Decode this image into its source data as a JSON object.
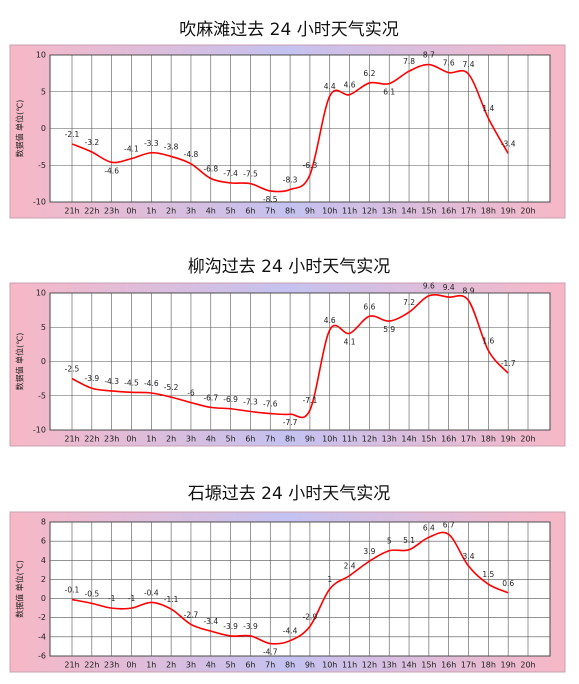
{
  "chart_data": [
    {
      "type": "line",
      "title": "吹麻滩过去 24 小时天气实况",
      "y_label": "数据值 单位(℃)",
      "categories": [
        "21h",
        "22h",
        "23h",
        "0h",
        "1h",
        "2h",
        "3h",
        "4h",
        "5h",
        "6h",
        "7h",
        "8h",
        "9h",
        "10h",
        "11h",
        "12h",
        "13h",
        "14h",
        "15h",
        "16h",
        "17h",
        "18h",
        "19h",
        "20h"
      ],
      "values": [
        -2.1,
        -3.2,
        -4.6,
        -4.1,
        -3.3,
        -3.8,
        -4.8,
        -6.8,
        -7.4,
        -7.5,
        -8.5,
        -8.3,
        -6.3,
        4.4,
        4.6,
        6.2,
        6.1,
        7.8,
        8.7,
        7.6,
        7.4,
        1.4,
        -3.4,
        null
      ],
      "color": "#ff0000",
      "ylim": [
        -10,
        10
      ],
      "yticks": [
        -10,
        -5,
        0,
        5,
        10
      ],
      "grid": true
    },
    {
      "type": "line",
      "title": "柳沟过去 24 小时天气实况",
      "y_label": "数据值 单位(℃)",
      "categories": [
        "21h",
        "22h",
        "23h",
        "0h",
        "1h",
        "2h",
        "3h",
        "4h",
        "5h",
        "6h",
        "7h",
        "8h",
        "9h",
        "10h",
        "11h",
        "12h",
        "13h",
        "14h",
        "15h",
        "16h",
        "17h",
        "18h",
        "19h",
        "20h"
      ],
      "values": [
        -2.5,
        -3.9,
        -4.3,
        -4.5,
        -4.6,
        -5.2,
        -6,
        -6.7,
        -6.9,
        -7.3,
        -7.6,
        -7.7,
        -7.1,
        4.6,
        4.1,
        6.6,
        5.9,
        7.2,
        9.6,
        9.4,
        8.9,
        1.6,
        -1.7,
        null
      ],
      "color": "#ff0000",
      "ylim": [
        -10,
        10
      ],
      "yticks": [
        -10,
        -5,
        0,
        5,
        10
      ],
      "grid": true
    },
    {
      "type": "line",
      "title": "石塬过去 24 小时天气实况",
      "y_label": "数据值 单位(℃)",
      "categories": [
        "21h",
        "22h",
        "23h",
        "0h",
        "1h",
        "2h",
        "3h",
        "4h",
        "5h",
        "6h",
        "7h",
        "8h",
        "9h",
        "10h",
        "11h",
        "12h",
        "13h",
        "14h",
        "15h",
        "16h",
        "17h",
        "18h",
        "19h",
        "20h"
      ],
      "values": [
        -0.1,
        -0.5,
        -1,
        -1,
        -0.4,
        -1.1,
        -2.7,
        -3.4,
        -3.9,
        -3.9,
        -4.7,
        -4.4,
        -2.9,
        1,
        2.4,
        3.9,
        5,
        5.1,
        6.4,
        6.7,
        3.4,
        1.5,
        0.6,
        null
      ],
      "color": "#ff0000",
      "ylim": [
        -6,
        8
      ],
      "yticks": [
        -6,
        -4,
        -2,
        0,
        2,
        4,
        6,
        8
      ],
      "grid": true
    }
  ]
}
